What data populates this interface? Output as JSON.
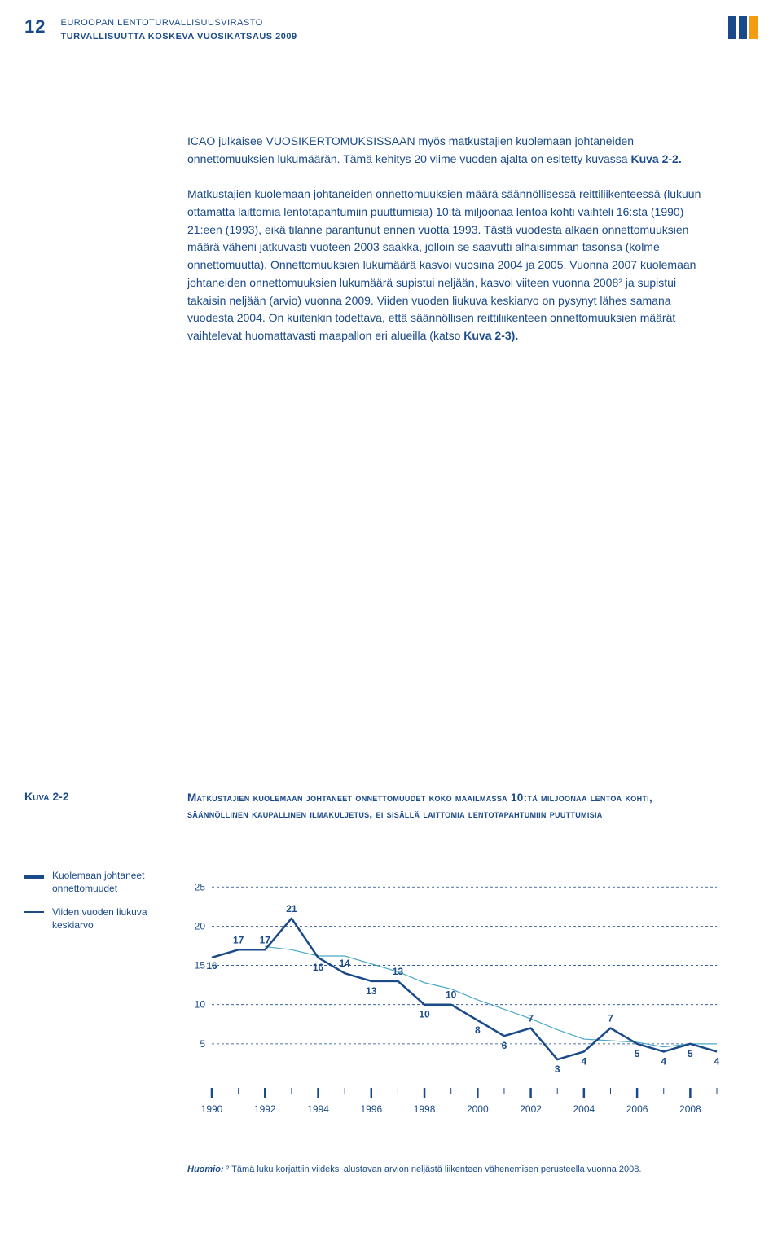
{
  "page_number": "12",
  "header": {
    "line1": "EUROOPAN LENTOTURVALLISUUSVIRASTO",
    "line2": "TURVALLISUUTTA KOSKEVA VUOSIKATSAUS 2009"
  },
  "paragraphs": {
    "p1_a": "ICAO julkaisee VUOSIKERTOMUKSISSAAN myös matkustajien kuolemaan johtaneiden onnettomuuksien lukumäärän. Tämä kehitys 20 viime vuoden ajalta on esitetty kuvassa ",
    "p1_b": "Kuva 2-2.",
    "p2_a": "Matkustajien kuolemaan johtaneiden onnettomuuksien määrä säännöllisessä reittiliikenteessä (lukuun ottamatta laittomia lentotapahtumiin puuttumisia) 10:tä miljoonaa lentoa kohti vaihteli 16:sta (1990) 21:een (1993), eikä tilanne parantunut ennen vuotta 1993. Tästä vuodesta alkaen onnettomuuksien määrä väheni jatkuvasti vuoteen 2003 saakka, jolloin se saavutti alhaisimman tasonsa (kolme onnettomuutta). Onnettomuuksien lukumäärä kasvoi vuosina 2004 ja 2005. Vuonna 2007 kuolemaan johtaneiden onnettomuuksien lukumäärä supistui neljään, kasvoi viiteen vuonna 2008² ja supistui takaisin neljään (arvio) vuonna 2009. Viiden vuoden liukuva keskiarvo on pysynyt lähes samana vuodesta 2004. On kuitenkin todettava, että säännöllisen reittiliikenteen onnettomuuksien määrät vaihtelevat huomattavasti maapallon eri alueilla (katso ",
    "p2_b": "Kuva 2-3)."
  },
  "chart": {
    "label": "Kuva 2-2",
    "title": "Matkustajien kuolemaan johtaneet onnettomuudet koko maailmassa 10:tä miljoonaa lentoa kohti, säännöllinen kaupallinen ilmakuljetus, ei sisällä laittomia lentotapahtumiin puuttumisia",
    "legend": {
      "series1": "Kuolemaan johtaneet onnettomuudet",
      "series2": "Viiden vuoden liukuva keskiarvo"
    },
    "years": [
      1990,
      1991,
      1992,
      1993,
      1994,
      1995,
      1996,
      1997,
      1998,
      1999,
      2000,
      2001,
      2002,
      2003,
      2004,
      2005,
      2006,
      2007,
      2008,
      2009
    ],
    "x_ticks": [
      1990,
      1992,
      1994,
      1996,
      1998,
      2000,
      2002,
      2004,
      2006,
      2008
    ],
    "data_values": [
      16,
      17,
      17,
      21,
      16,
      14,
      13,
      13,
      10,
      10,
      8,
      6,
      7,
      3,
      4,
      7,
      5,
      4,
      5,
      4
    ],
    "avg_values": [
      null,
      null,
      17.4,
      17,
      16.2,
      16.2,
      15.2,
      14.2,
      12.8,
      12,
      10.6,
      9.4,
      8.2,
      6.8,
      5.6,
      5.4,
      5.2,
      4.6,
      5,
      5
    ],
    "y_ticks": [
      5,
      10,
      15,
      20,
      25
    ],
    "ymax": 27,
    "colors": {
      "data_line": "#1a4a8a",
      "avg_line": "#4aa8c8",
      "grid": "#1a4a8a",
      "text": "#1a4a8a",
      "background": "#ffffff"
    },
    "data_line_width": 2.5,
    "avg_line_width": 1.2,
    "label_fontsize": 12
  },
  "footnote": {
    "label": "Huomio:",
    "text": "² Tämä luku korjattiin viideksi alustavan arvion neljästä liikenteen vähenemisen perusteella vuonna 2008."
  }
}
